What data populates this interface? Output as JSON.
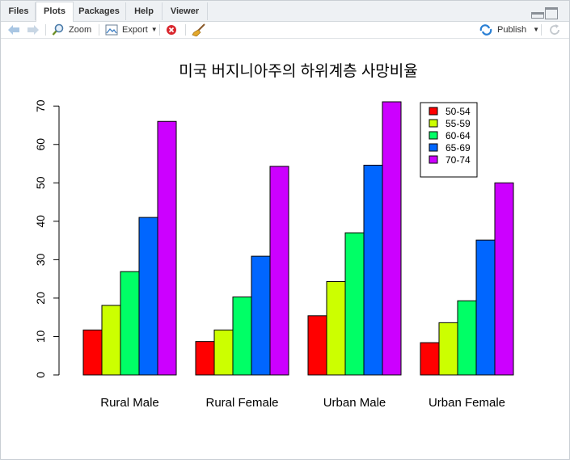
{
  "tabs": [
    "Files",
    "Plots",
    "Packages",
    "Help",
    "Viewer"
  ],
  "active_tab": "Plots",
  "toolbar": {
    "zoom_label": "Zoom",
    "export_label": "Export",
    "publish_label": "Publish"
  },
  "colors": {
    "bar_colors": [
      "#ff0000",
      "#ccff00",
      "#00ff66",
      "#0066ff",
      "#cc00ff"
    ],
    "accent": "#2a7fd4"
  },
  "chart_data": {
    "type": "bar",
    "title": "미국 버지니아주의 하위계층 사망비율",
    "categories": [
      "Rural Male",
      "Rural Female",
      "Urban Male",
      "Urban Female"
    ],
    "series": [
      {
        "name": "50-54",
        "values": [
          11.7,
          8.7,
          15.4,
          8.4
        ]
      },
      {
        "name": "55-59",
        "values": [
          18.1,
          11.7,
          24.3,
          13.6
        ]
      },
      {
        "name": "60-64",
        "values": [
          26.9,
          20.3,
          37.0,
          19.3
        ]
      },
      {
        "name": "65-69",
        "values": [
          41.0,
          30.9,
          54.6,
          35.1
        ]
      },
      {
        "name": "70-74",
        "values": [
          66.0,
          54.3,
          71.1,
          50.0
        ]
      }
    ],
    "yticks": [
      0,
      10,
      20,
      30,
      40,
      50,
      60,
      70
    ],
    "ylim": [
      0,
      71.1
    ],
    "xlabel": "",
    "ylabel": "",
    "legend_position": "top-right"
  }
}
